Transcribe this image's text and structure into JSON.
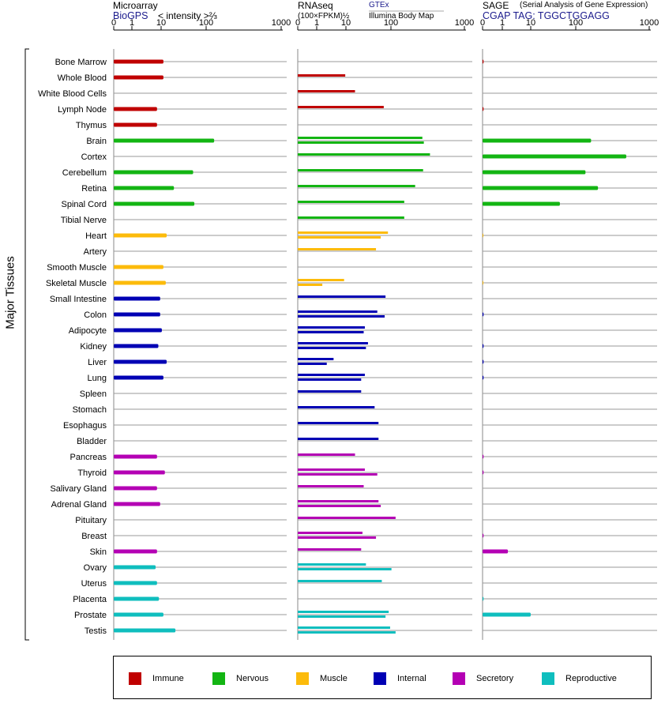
{
  "headers": {
    "microarray": {
      "title": "Microarray",
      "source": "BioGPS",
      "axis_note": "< intensity >⅔"
    },
    "rnaseq": {
      "title": "RNAseq",
      "axis_note": "(100×FPKM)½",
      "source1": "GTEx",
      "source2": "Illumina Body Map"
    },
    "sage": {
      "title": "SAGE",
      "note": "(Serial Analysis of Gene Expression)",
      "tag": "CGAP TAG: TGGCTGGAGG"
    }
  },
  "y_axis_label": "Major Tissues",
  "colors": {
    "Immune": "#c00000",
    "Nervous": "#13b513",
    "Muscle": "#fcbb0b",
    "Internal": "#0000b4",
    "Secretory": "#b400b4",
    "Reproductive": "#0fbebe"
  },
  "legend": [
    {
      "label": "Immune",
      "color": "#c00000"
    },
    {
      "label": "Nervous",
      "color": "#13b513"
    },
    {
      "label": "Muscle",
      "color": "#fcbb0b"
    },
    {
      "label": "Internal",
      "color": "#0000b4"
    },
    {
      "label": "Secretory",
      "color": "#b400b4"
    },
    {
      "label": "Reproductive",
      "color": "#0fbebe"
    }
  ],
  "chart_data": {
    "type": "bar",
    "orientation": "horizontal",
    "x_scale": "log",
    "x_ticks": [
      "0",
      "1",
      "10",
      "100",
      "1000"
    ],
    "xlim": [
      0,
      1000
    ],
    "categories": [
      "Bone Marrow",
      "Whole Blood",
      "White Blood Cells",
      "Lymph Node",
      "Thymus",
      "Brain",
      "Cortex",
      "Cerebellum",
      "Retina",
      "Spinal Cord",
      "Tibial Nerve",
      "Heart",
      "Artery",
      "Smooth Muscle",
      "Skeletal Muscle",
      "Small Intestine",
      "Colon",
      "Adipocyte",
      "Kidney",
      "Liver",
      "Lung",
      "Spleen",
      "Stomach",
      "Esophagus",
      "Bladder",
      "Pancreas",
      "Thyroid",
      "Salivary Gland",
      "Adrenal Gland",
      "Pituitary",
      "Breast",
      "Skin",
      "Ovary",
      "Uterus",
      "Placenta",
      "Prostate",
      "Testis"
    ],
    "groups": [
      "Immune",
      "Immune",
      "Immune",
      "Immune",
      "Immune",
      "Nervous",
      "Nervous",
      "Nervous",
      "Nervous",
      "Nervous",
      "Nervous",
      "Muscle",
      "Muscle",
      "Muscle",
      "Muscle",
      "Internal",
      "Internal",
      "Internal",
      "Internal",
      "Internal",
      "Internal",
      "Internal",
      "Internal",
      "Internal",
      "Internal",
      "Secretory",
      "Secretory",
      "Secretory",
      "Secretory",
      "Secretory",
      "Secretory",
      "Secretory",
      "Reproductive",
      "Reproductive",
      "Reproductive",
      "Reproductive",
      "Reproductive"
    ],
    "panels": [
      {
        "name": "Microarray",
        "bar_style": "single",
        "values": [
          4.3,
          4.3,
          null,
          3.2,
          3.2,
          45,
          null,
          17,
          7,
          18,
          null,
          5,
          null,
          4.3,
          4.8,
          3.7,
          3.7,
          4,
          3.4,
          5,
          4.3,
          null,
          null,
          null,
          null,
          3.2,
          4.6,
          3.2,
          3.7,
          null,
          null,
          3.2,
          3,
          3.2,
          3.5,
          4.3,
          7.5
        ]
      },
      {
        "name": "RNAseq",
        "bar_style": "pair",
        "series": [
          {
            "name": "GTEx",
            "values": [
              null,
              3.8,
              6,
              23,
              null,
              140,
              200,
              145,
              100,
              60,
              60,
              28,
              16,
              null,
              3.6,
              25,
              17,
              9.5,
              11,
              2.2,
              9.5,
              8,
              15,
              18,
              18,
              6,
              9.5,
              9,
              18,
              40,
              8.5,
              8,
              10,
              21,
              null,
              29,
              31
            ]
          },
          {
            "name": "Illumina Body Map",
            "values": [
              null,
              null,
              null,
              null,
              null,
              150,
              null,
              null,
              null,
              null,
              null,
              20,
              null,
              null,
              1.3,
              null,
              24,
              9,
              10,
              1.6,
              8,
              null,
              null,
              null,
              null,
              null,
              17,
              null,
              20,
              null,
              16,
              null,
              33,
              null,
              null,
              25,
              40
            ]
          }
        ]
      },
      {
        "name": "SAGE",
        "bar_style": "single",
        "values": [
          0.05,
          null,
          null,
          0.05,
          null,
          65,
          340,
          50,
          90,
          15,
          null,
          0.02,
          null,
          null,
          0.02,
          null,
          0.05,
          null,
          0.05,
          0.05,
          0.05,
          null,
          null,
          null,
          null,
          0.05,
          0.05,
          null,
          null,
          null,
          0.05,
          1.3,
          null,
          null,
          0.05,
          3.8,
          null
        ]
      }
    ]
  }
}
